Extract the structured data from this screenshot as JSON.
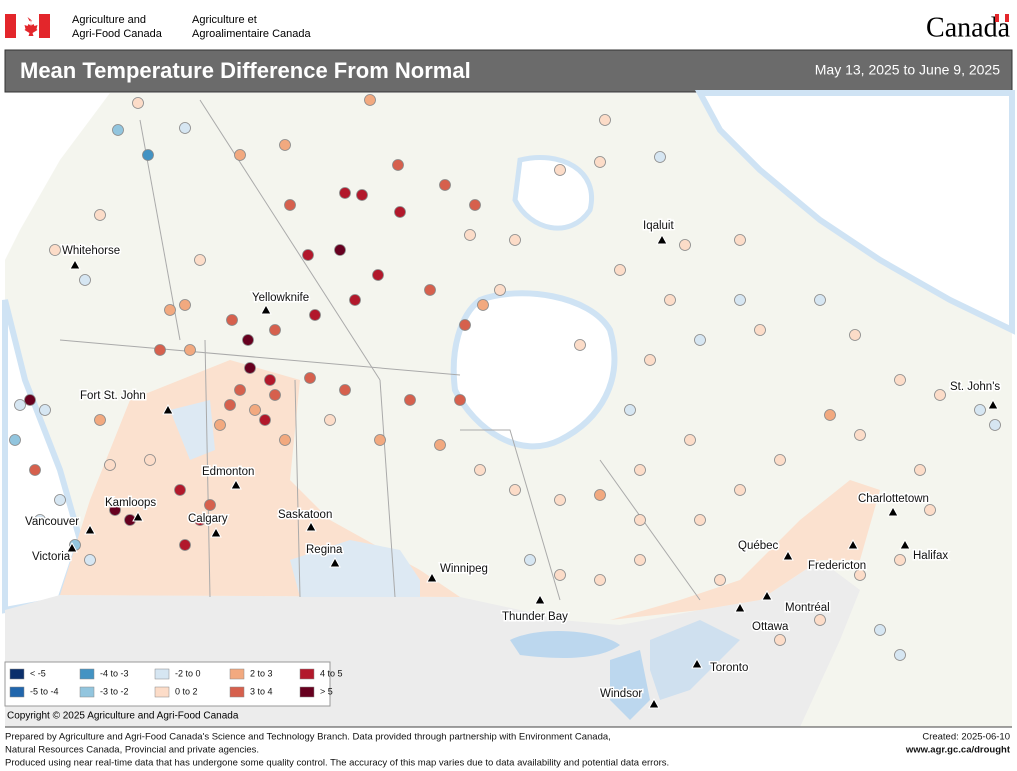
{
  "header": {
    "department_en": [
      "Agriculture and",
      "Agri-Food Canada"
    ],
    "department_fr": [
      "Agriculture et",
      "Agroalimentaire Canada"
    ],
    "wordmark": "Canada"
  },
  "title": "Mean Temperature Difference From Normal",
  "date_range": "May 13, 2025 to June 9, 2025",
  "cities": [
    "Whitehorse",
    "Yellowknife",
    "Iqaluit",
    "Fort St. John",
    "Edmonton",
    "Kamloops",
    "Calgary",
    "Vancouver",
    "Victoria",
    "Saskatoon",
    "Regina",
    "Winnipeg",
    "Thunder Bay",
    "Toronto",
    "Windsor",
    "Ottawa",
    "Montréal",
    "Québec",
    "Fredericton",
    "Charlottetown",
    "Halifax",
    "St. John's"
  ],
  "legend": [
    {
      "label": "< -5",
      "color": "#0b2f6b"
    },
    {
      "label": "-5 to -4",
      "color": "#2166ac"
    },
    {
      "label": "-4 to -3",
      "color": "#4393c3"
    },
    {
      "label": "-3 to -2",
      "color": "#92c5de"
    },
    {
      "label": "-2 to 0",
      "color": "#d6e6f2"
    },
    {
      "label": "0 to 2",
      "color": "#fcdcc8"
    },
    {
      "label": "2 to 3",
      "color": "#f2a97f"
    },
    {
      "label": "3 to 4",
      "color": "#d6604d"
    },
    {
      "label": "4 to 5",
      "color": "#b2182b"
    },
    {
      "label": "> 5",
      "color": "#67001f"
    }
  ],
  "copyright": "Copyright © 2025 Agriculture and Agri-Food Canada",
  "footer": {
    "notes": [
      "Prepared by Agriculture and Agri-Food Canada's Science and Technology Branch. Data provided through partnership with Environment Canada,",
      "Natural Resources Canada, Provincial and private agencies.",
      "Produced using near real-time data that has undergone some quality control. The accuracy of this map varies due to data availability and potential data errors."
    ],
    "created": "Created: 2025-06-10",
    "url": "www.agr.gc.ca/drought"
  }
}
